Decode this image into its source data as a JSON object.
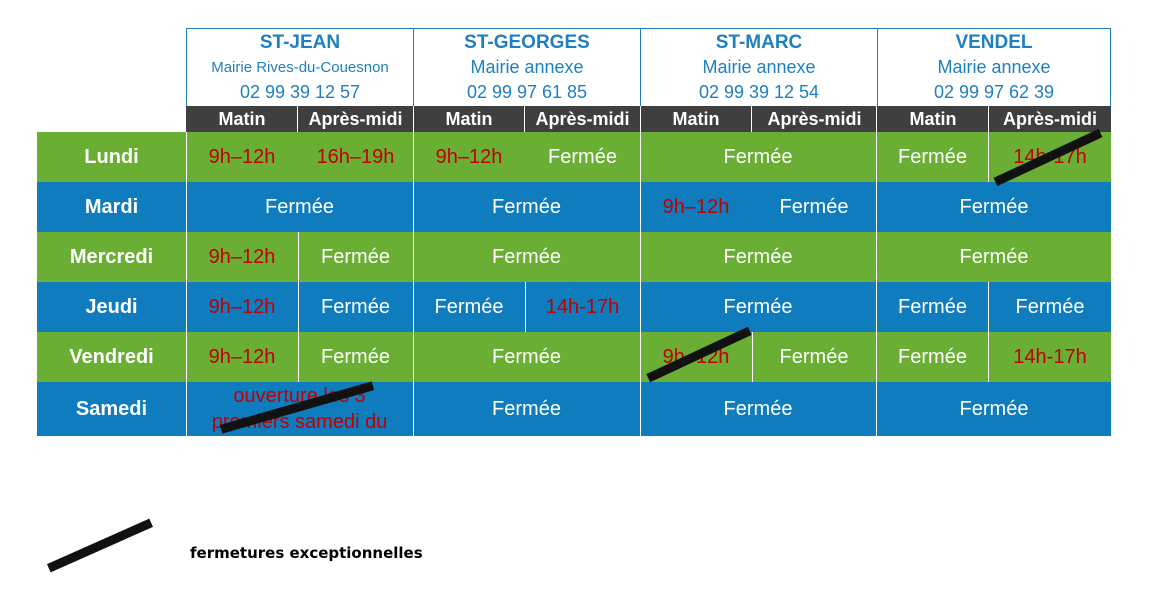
{
  "towns": [
    {
      "name": "ST-JEAN",
      "sub": "Mairie Rives-du-Couesnon",
      "tel": "02 99 39 12 57"
    },
    {
      "name": "ST-GEORGES",
      "sub": "Mairie annexe",
      "tel": "02 99 97 61 85"
    },
    {
      "name": "ST-MARC",
      "sub": "Mairie annexe",
      "tel": "02 99 39 12 54"
    },
    {
      "name": "VENDEL",
      "sub": "Mairie annexe",
      "tel": "02 99 97 62 39"
    }
  ],
  "subheaders": {
    "am": "Matin",
    "pm": "Après-midi"
  },
  "days": [
    "Lundi",
    "Mardi",
    "Mercredi",
    "Jeudi",
    "Vendredi",
    "Samedi"
  ],
  "cells": {
    "lundi": [
      "9h–12h",
      "16h–19h",
      "9h–12h",
      "Fermée",
      "Fermée",
      "Fermée",
      "14h-17h"
    ],
    "mardi": [
      "Fermée",
      "Fermée",
      "9h–12h",
      "Fermée",
      "Fermée"
    ],
    "mercredi": [
      "9h–12h",
      "Fermée",
      "Fermée",
      "Fermée",
      "Fermée"
    ],
    "jeudi": [
      "9h–12h",
      "Fermée",
      "Fermée",
      "14h-17h",
      "Fermée",
      "Fermée",
      "Fermée"
    ],
    "vendredi": [
      "9h–12h",
      "Fermée",
      "Fermée",
      "9h–12h",
      "Fermée",
      "Fermée",
      "14h-17h"
    ],
    "samedi": [
      "ouverture les 3",
      "premiers samedi du",
      "Fermée",
      "Fermée",
      "Fermée"
    ]
  },
  "legend": "fermetures exceptionnelles"
}
